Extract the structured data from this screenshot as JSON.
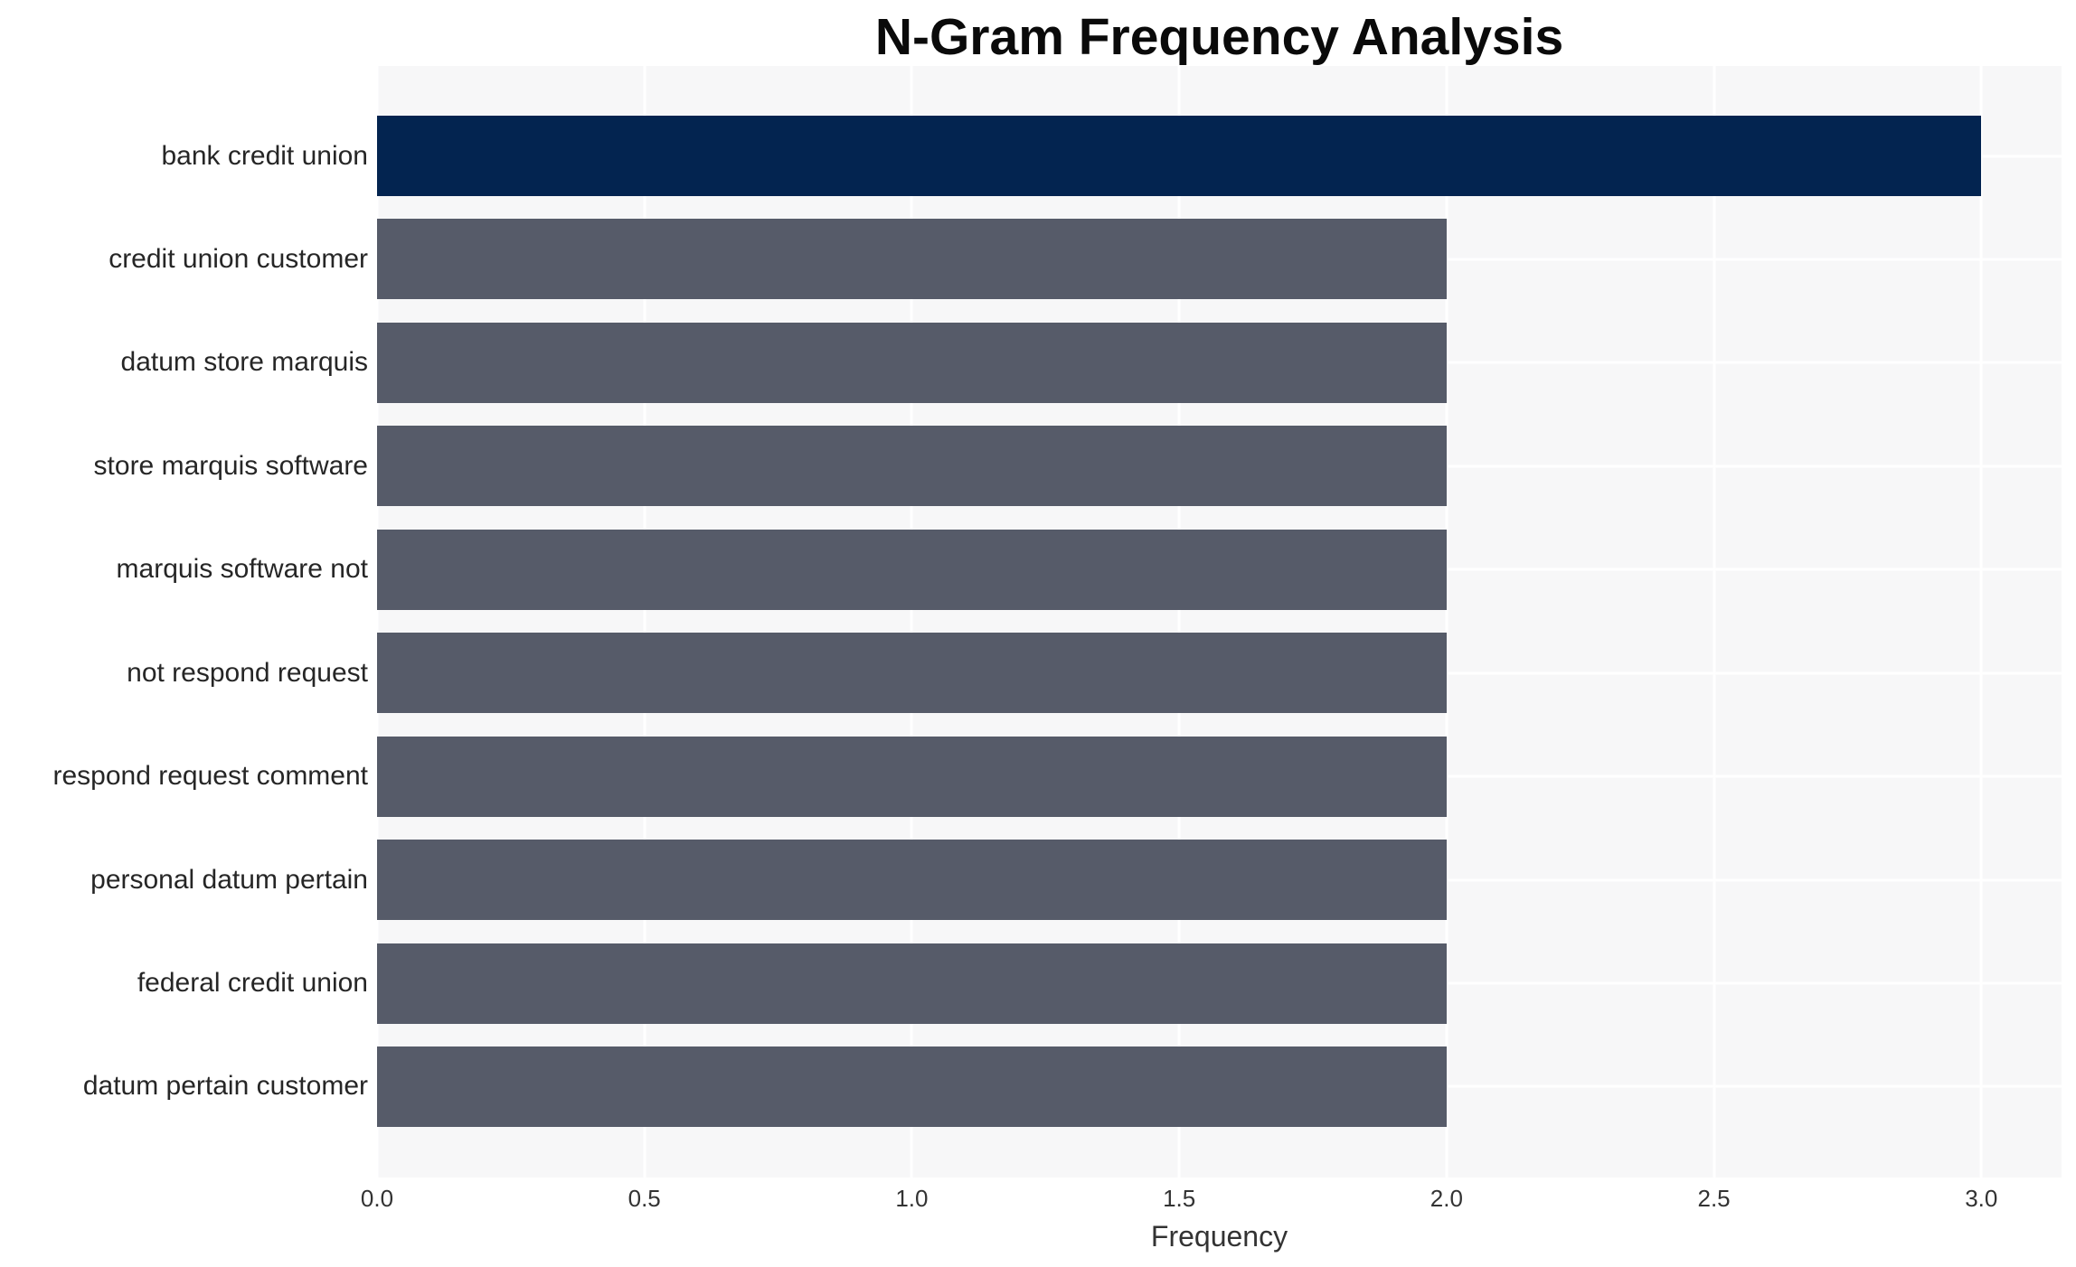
{
  "chart_data": {
    "type": "bar",
    "orientation": "horizontal",
    "title": "N-Gram Frequency Analysis",
    "xlabel": "Frequency",
    "ylabel": "",
    "categories": [
      "bank credit union",
      "credit union customer",
      "datum store marquis",
      "store marquis software",
      "marquis software not",
      "not respond request",
      "respond request comment",
      "personal datum pertain",
      "federal credit union",
      "datum pertain customer"
    ],
    "values": [
      3,
      2,
      2,
      2,
      2,
      2,
      2,
      2,
      2,
      2
    ],
    "xlim": [
      0,
      3.15
    ],
    "xticks": [
      "0.0",
      "0.5",
      "1.0",
      "1.5",
      "2.0",
      "2.5",
      "3.0"
    ],
    "grid": true,
    "legend": "none",
    "colors": {
      "highlight_bar": "#032450",
      "default_bar": "#565b69",
      "plot_background": "#f7f7f8",
      "grid_line": "#ffffff",
      "title_text": "#0a0a0a",
      "category_label_text": "#262626",
      "tick_text": "#333333"
    },
    "highlight_index": 0
  }
}
